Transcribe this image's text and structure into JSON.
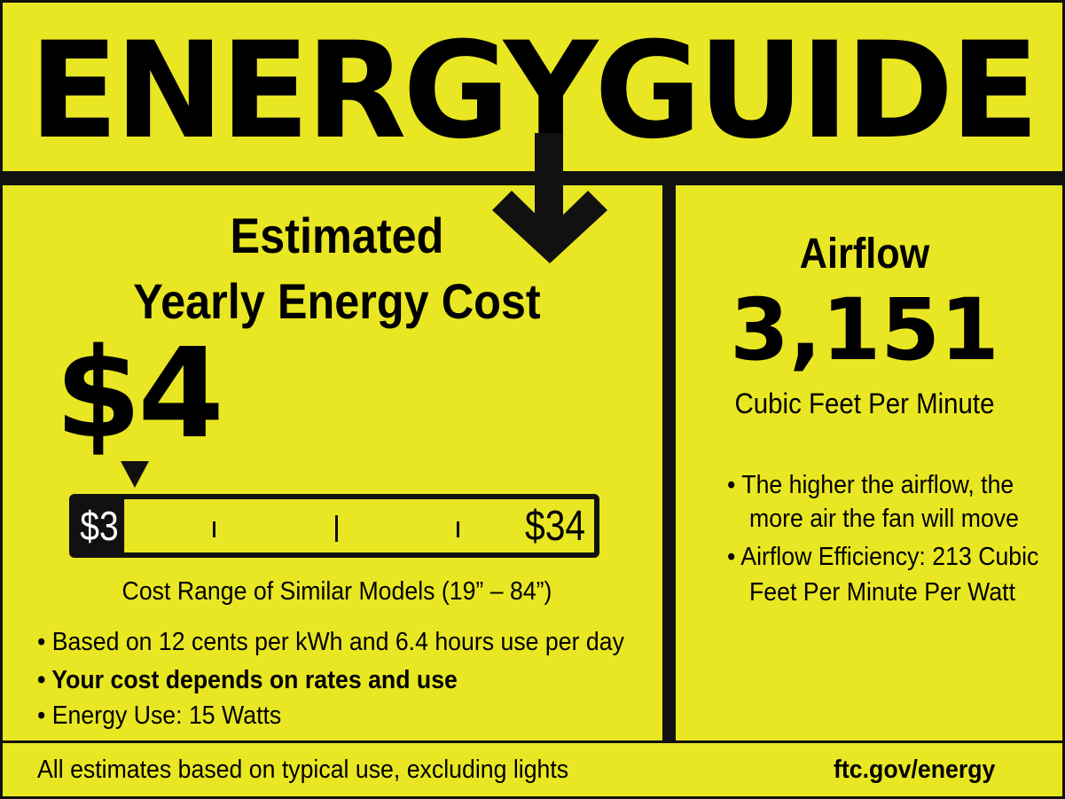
{
  "header": {
    "title": "ENERGYGUIDE"
  },
  "cost_panel": {
    "heading_line1": "Estimated",
    "heading_line2": "Yearly Energy Cost",
    "cost": "$4",
    "range": {
      "low": "$3",
      "high": "$34",
      "low_value": 3,
      "high_value": 34,
      "marker_value": 4
    },
    "range_caption": "Cost Range of Similar Models (19” – 84”)",
    "bullets": [
      "• Based on 12 cents per kWh and 6.4 hours use per day",
      "• Your cost depends on rates and use",
      "• Energy Use:  15 Watts"
    ]
  },
  "airflow_panel": {
    "heading": "Airflow",
    "value": "3,151",
    "unit": "Cubic Feet Per Minute",
    "bullets": [
      [
        "• The higher the airflow, the",
        "more air the fan will move"
      ],
      [
        "• Airflow Efficiency: 213 Cubic",
        "Feet Per Minute Per Watt"
      ]
    ]
  },
  "footer": {
    "note": "All estimates based on typical use, excluding lights",
    "link": "ftc.gov/energy"
  },
  "colors": {
    "background": "#e9e723",
    "ink": "#111111"
  }
}
